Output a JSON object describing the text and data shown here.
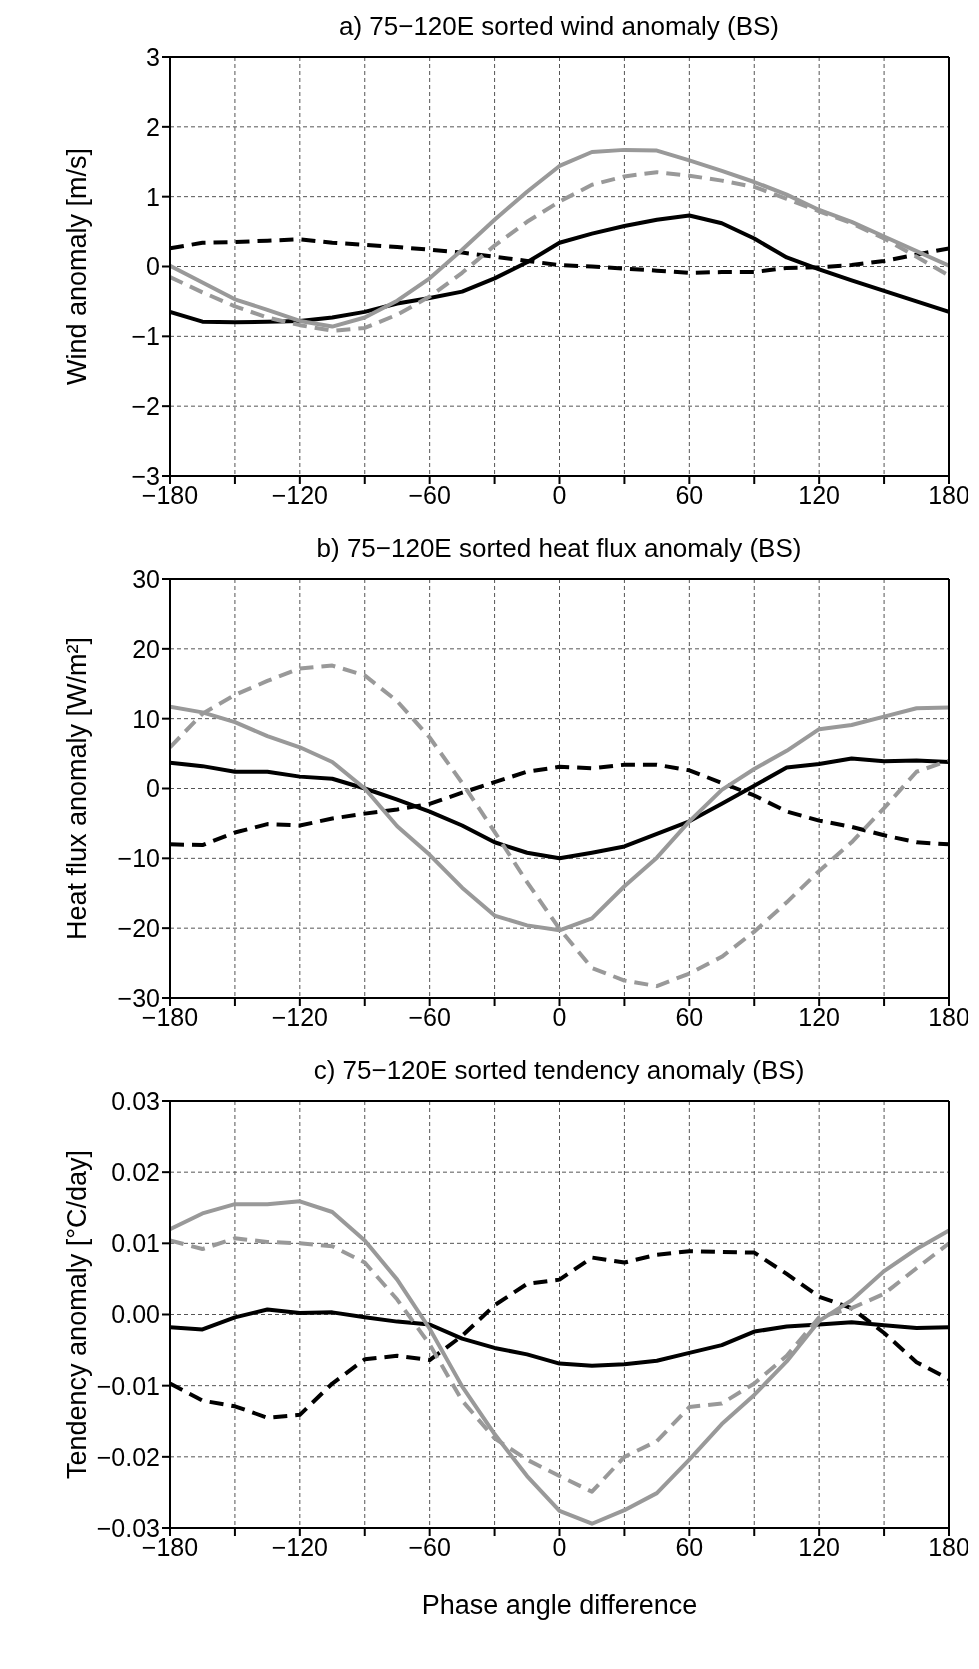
{
  "chart_data": [
    {
      "type": "line",
      "title": "a) 75−120E sorted wind anomaly (BS)",
      "ylabel": "Wind anomaly [m/s]",
      "x": [
        -180,
        -165,
        -150,
        -135,
        -120,
        -105,
        -90,
        -75,
        -60,
        -45,
        -30,
        -15,
        0,
        15,
        30,
        45,
        60,
        75,
        90,
        105,
        120,
        135,
        150,
        165,
        180
      ],
      "xlim": [
        -180,
        180
      ],
      "xticks": [
        -180,
        {
          "value": -150,
          "label": null
        },
        -120,
        {
          "value": -90,
          "label": null
        },
        -60,
        {
          "value": -30,
          "label": null
        },
        0,
        {
          "value": 30,
          "label": null
        },
        60,
        {
          "value": 90,
          "label": null
        },
        120,
        {
          "value": 150,
          "label": null
        },
        180
      ],
      "ylim": [
        -3,
        3
      ],
      "yticks": [
        -3,
        -2,
        -1,
        0,
        1,
        2,
        3
      ],
      "grid": true,
      "legend": false,
      "marker": "none",
      "series": [
        {
          "color": "#000000",
          "line_style": "solid",
          "values": [
            -0.65,
            -0.79,
            -0.8,
            -0.79,
            -0.78,
            -0.73,
            -0.65,
            -0.53,
            -0.45,
            -0.36,
            -0.17,
            0.06,
            0.34,
            0.47,
            0.58,
            0.67,
            0.73,
            0.62,
            0.4,
            0.13,
            -0.04,
            -0.2,
            -0.35,
            -0.5,
            -0.65
          ]
        },
        {
          "color": "#000000",
          "line_style": "dashed",
          "values": [
            0.26,
            0.34,
            0.35,
            0.37,
            0.39,
            0.34,
            0.31,
            0.28,
            0.24,
            0.2,
            0.14,
            0.08,
            0.02,
            0,
            -0.03,
            -0.06,
            -0.09,
            -0.08,
            -0.08,
            -0.02,
            -0.01,
            0.02,
            0.08,
            0.17,
            0.26
          ]
        },
        {
          "color": "#999999",
          "line_style": "solid",
          "values": [
            0.01,
            -0.23,
            -0.47,
            -0.62,
            -0.78,
            -0.86,
            -0.73,
            -0.49,
            -0.17,
            0.24,
            0.67,
            1.07,
            1.44,
            1.64,
            1.67,
            1.66,
            1.52,
            1.37,
            1.21,
            1.03,
            0.81,
            0.64,
            0.43,
            0.22,
            0.01
          ]
        },
        {
          "color": "#999999",
          "line_style": "dashed",
          "values": [
            -0.15,
            -0.37,
            -0.57,
            -0.73,
            -0.84,
            -0.92,
            -0.88,
            -0.69,
            -0.43,
            -0.09,
            0.3,
            0.64,
            0.93,
            1.17,
            1.29,
            1.35,
            1.3,
            1.23,
            1.14,
            0.97,
            0.79,
            0.62,
            0.4,
            0.14,
            -0.13
          ]
        }
      ]
    },
    {
      "type": "line",
      "title": "b) 75−120E sorted heat flux anomaly (BS)",
      "ylabel": "Heat flux anomaly [W/m²]",
      "x": [
        -180,
        -165,
        -150,
        -135,
        -120,
        -105,
        -90,
        -75,
        -60,
        -45,
        -30,
        -15,
        0,
        15,
        30,
        45,
        60,
        75,
        90,
        105,
        120,
        135,
        150,
        165,
        180
      ],
      "xlim": [
        -180,
        180
      ],
      "xticks": [
        -180,
        {
          "value": -150,
          "label": null
        },
        -120,
        {
          "value": -90,
          "label": null
        },
        -60,
        {
          "value": -30,
          "label": null
        },
        0,
        {
          "value": 30,
          "label": null
        },
        60,
        {
          "value": 90,
          "label": null
        },
        120,
        {
          "value": 150,
          "label": null
        },
        180
      ],
      "ylim": [
        -30,
        30
      ],
      "yticks": [
        -30,
        -20,
        -10,
        0,
        10,
        20,
        30
      ],
      "grid": true,
      "legend": false,
      "marker": "none",
      "series": [
        {
          "color": "#000000",
          "line_style": "solid",
          "values": [
            3.7,
            3.2,
            2.4,
            2.4,
            1.7,
            1.4,
            0,
            -1.6,
            -3.3,
            -5.3,
            -7.7,
            -9.2,
            -10,
            -9.2,
            -8.3,
            -6.5,
            -4.7,
            -2.2,
            0.4,
            3,
            3.5,
            4.3,
            3.9,
            4,
            3.8
          ]
        },
        {
          "color": "#000000",
          "line_style": "dashed",
          "values": [
            -8,
            -8.1,
            -6.3,
            -5.1,
            -5.3,
            -4.3,
            -3.6,
            -3,
            -2.2,
            -0.6,
            0.9,
            2.4,
            3.1,
            2.9,
            3.4,
            3.4,
            2.6,
            0.8,
            -1,
            -3.3,
            -4.6,
            -5.5,
            -6.7,
            -7.7,
            -8
          ]
        },
        {
          "color": "#999999",
          "line_style": "solid",
          "values": [
            11.7,
            10.9,
            9.5,
            7.5,
            5.9,
            3.8,
            0,
            -5.4,
            -9.5,
            -14.2,
            -18.2,
            -19.6,
            -20.3,
            -18.6,
            -14,
            -9.9,
            -4.7,
            -0.2,
            2.8,
            5.4,
            8.5,
            9.1,
            10.3,
            11.5,
            11.6
          ]
        },
        {
          "color": "#999999",
          "line_style": "dashed",
          "values": [
            5.9,
            10.7,
            13.4,
            15.4,
            17.2,
            17.6,
            16.2,
            12.5,
            7.3,
            0.8,
            -6.2,
            -13.4,
            -20.1,
            -25.7,
            -27.5,
            -28.3,
            -26.5,
            -24.1,
            -20.5,
            -16.3,
            -11.8,
            -7.7,
            -2.8,
            2.4,
            4
          ]
        }
      ]
    },
    {
      "type": "line",
      "title": "c) 75−120E sorted tendency anomaly (BS)",
      "ylabel": "Tendency anomaly [°C/day]",
      "xlabel": "Phase angle difference",
      "x": [
        -180,
        -165,
        -150,
        -135,
        -120,
        -105,
        -90,
        -75,
        -60,
        -45,
        -30,
        -15,
        0,
        15,
        30,
        45,
        60,
        75,
        90,
        105,
        120,
        135,
        150,
        165,
        180
      ],
      "xlim": [
        -180,
        180
      ],
      "xticks": [
        -180,
        {
          "value": -150,
          "label": null
        },
        -120,
        {
          "value": -90,
          "label": null
        },
        -60,
        {
          "value": -30,
          "label": null
        },
        0,
        {
          "value": 30,
          "label": null
        },
        60,
        {
          "value": 90,
          "label": null
        },
        120,
        {
          "value": 150,
          "label": null
        },
        180
      ],
      "ylim": [
        -0.03,
        0.03
      ],
      "yticks": [
        {
          "value": -0.03,
          "label": "−0.03"
        },
        {
          "value": -0.02,
          "label": "−0.02"
        },
        {
          "value": -0.01,
          "label": "−0.01"
        },
        {
          "value": 0,
          "label": "0.00"
        },
        0.01,
        0.02,
        0.03
      ],
      "grid": true,
      "legend": false,
      "marker": "none",
      "series": [
        {
          "color": "#000000",
          "line_style": "solid",
          "values": [
            -0.0018,
            -0.0021,
            -0.0004,
            0.0007,
            0.0002,
            0.0003,
            -0.0004,
            -0.001,
            -0.0014,
            -0.0034,
            -0.0047,
            -0.0056,
            -0.0069,
            -0.0072,
            -0.007,
            -0.0065,
            -0.0054,
            -0.0043,
            -0.0024,
            -0.0017,
            -0.0014,
            -0.0011,
            -0.0015,
            -0.0019,
            -0.0018
          ]
        },
        {
          "color": "#000000",
          "line_style": "dashed",
          "values": [
            -0.0097,
            -0.0121,
            -0.0129,
            -0.0145,
            -0.0141,
            -0.0097,
            -0.0063,
            -0.0058,
            -0.0064,
            -0.003,
            0.0013,
            0.0043,
            0.0049,
            0.008,
            0.0073,
            0.0084,
            0.0089,
            0.0088,
            0.0087,
            0.0057,
            0.0025,
            0.0009,
            -0.0026,
            -0.0067,
            -0.0091
          ]
        },
        {
          "color": "#999999",
          "line_style": "solid",
          "values": [
            0.012,
            0.0142,
            0.0155,
            0.0155,
            0.0159,
            0.0144,
            0.0104,
            0.0049,
            -0.002,
            -0.0101,
            -0.0168,
            -0.0227,
            -0.0276,
            -0.0294,
            -0.0275,
            -0.0251,
            -0.0204,
            -0.0154,
            -0.0113,
            -0.0066,
            -0.0009,
            0.002,
            0.0061,
            0.0092,
            0.0118
          ]
        },
        {
          "color": "#999999",
          "line_style": "dashed",
          "values": [
            0.0104,
            0.0092,
            0.0107,
            0.0102,
            0.01,
            0.0096,
            0.0073,
            0.0021,
            -0.0042,
            -0.0121,
            -0.0174,
            -0.0204,
            -0.0227,
            -0.0249,
            -0.02,
            -0.0178,
            -0.013,
            -0.0125,
            -0.0097,
            -0.0058,
            -0.0004,
            0.0009,
            0.0029,
            0.0065,
            0.01
          ]
        }
      ]
    }
  ]
}
